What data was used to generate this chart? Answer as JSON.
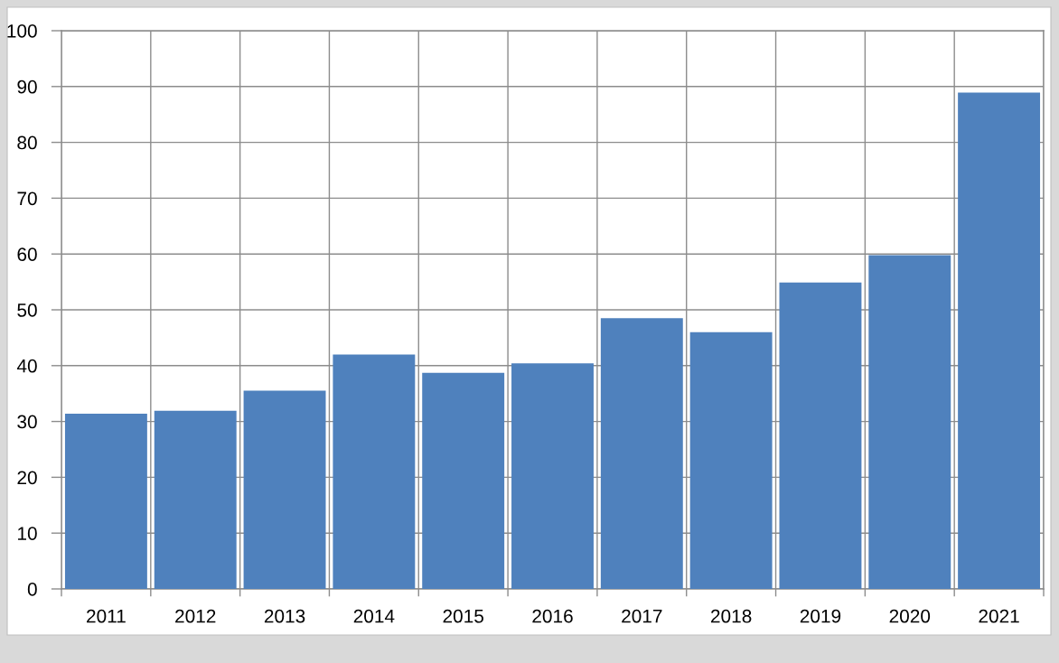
{
  "chart_data": {
    "type": "bar",
    "categories": [
      "2011",
      "2012",
      "2013",
      "2014",
      "2015",
      "2016",
      "2017",
      "2018",
      "2019",
      "2020",
      "2021"
    ],
    "values": [
      31.4,
      31.9,
      35.5,
      42.0,
      38.7,
      40.4,
      48.5,
      46.0,
      54.9,
      59.8,
      88.9
    ],
    "color": "#4f81bd",
    "ylim": [
      0,
      100
    ],
    "yticks": [
      0,
      10,
      20,
      30,
      40,
      50,
      60,
      70,
      80,
      90,
      100
    ],
    "grid": true
  }
}
